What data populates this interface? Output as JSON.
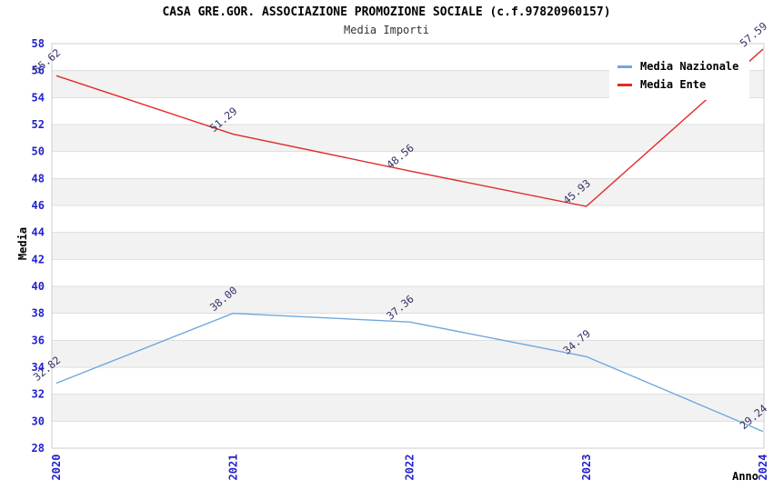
{
  "header": {
    "title": "CASA GRE.GOR. ASSOCIAZIONE PROMOZIONE SOCIALE (c.f.97820960157)",
    "subtitle": "Media Importi"
  },
  "legend": {
    "items": [
      {
        "label": "Media Nazionale",
        "color": "#6FA8DC"
      },
      {
        "label": "Media Ente",
        "color": "#E02B2B"
      }
    ]
  },
  "chart_data": {
    "type": "line",
    "title": "CASA GRE.GOR. ASSOCIAZIONE PROMOZIONE SOCIALE (c.f.97820960157)",
    "subtitle": "Media Importi",
    "xlabel": "Anno",
    "ylabel": "Media",
    "x": [
      "2020",
      "2021",
      "2022",
      "2023",
      "2024"
    ],
    "series": [
      {
        "name": "Media Nazionale",
        "color": "#6FA8DC",
        "values": [
          32.82,
          38.0,
          37.36,
          34.79,
          29.24
        ]
      },
      {
        "name": "Media Ente",
        "color": "#E02B2B",
        "values": [
          55.62,
          51.29,
          48.56,
          45.93,
          57.59
        ]
      }
    ],
    "ylim": [
      28,
      58
    ],
    "ytick_step": 2,
    "grid": true,
    "legend_position": "top-right",
    "data_label_decimals": 2,
    "colors": {
      "tick_label": "#2222CC",
      "data_label": "#333366",
      "gridline": "#DDDDDD",
      "plot_border": "#CCCCCC",
      "band_gray": "#F2F2F2",
      "band_white": "#FFFFFF"
    }
  }
}
